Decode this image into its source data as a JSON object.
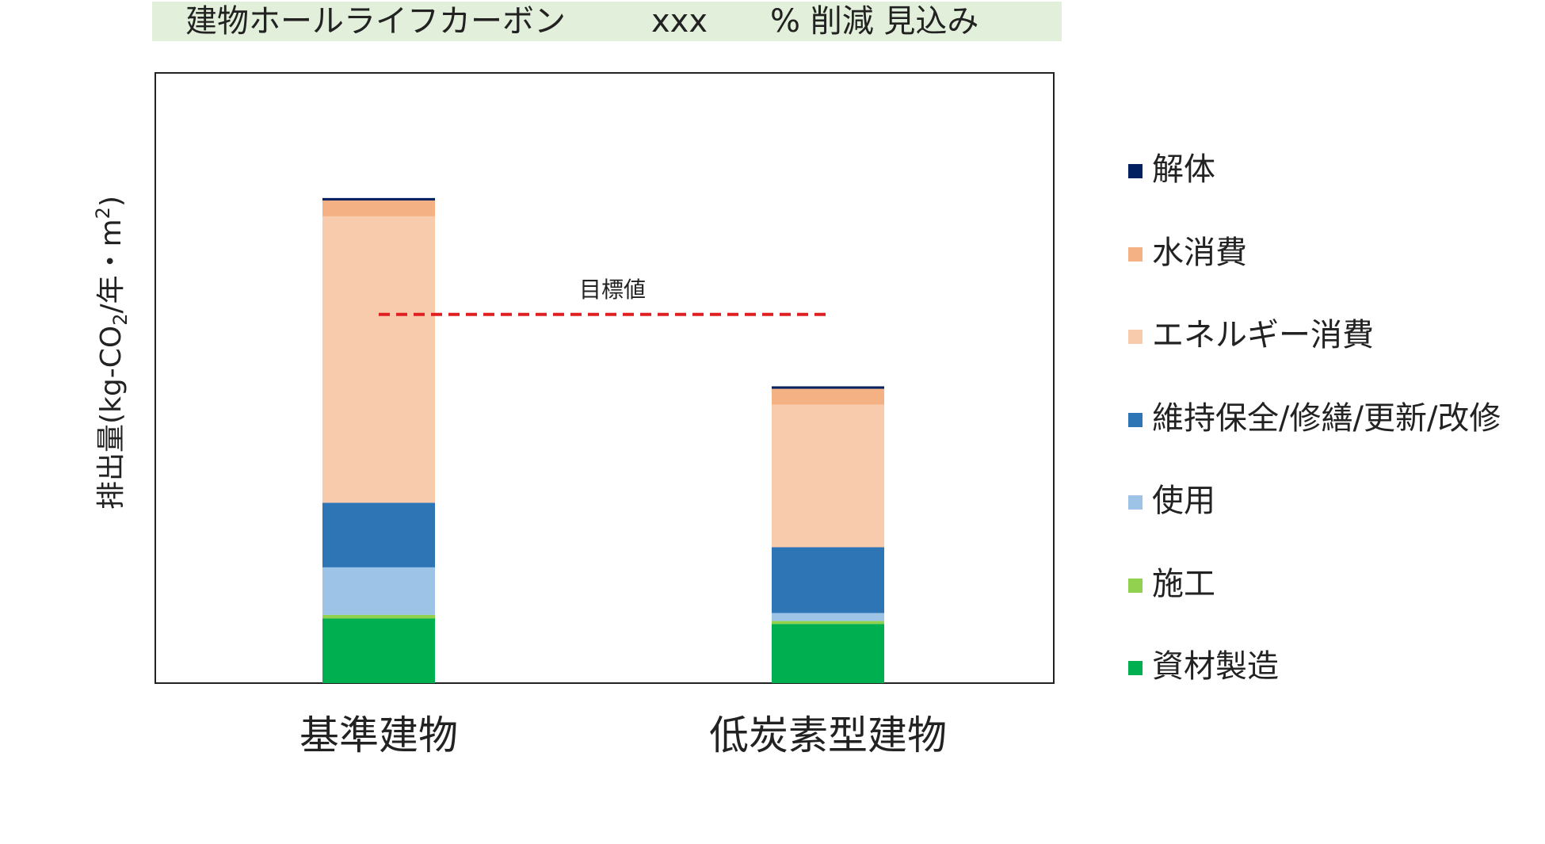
{
  "banner": {
    "main": "建物ホールライフカーボン",
    "value": "xxx",
    "suffix": "% 削減 見込み"
  },
  "chart_data": {
    "type": "bar",
    "stacked": true,
    "categories": [
      "基準建物",
      "低炭素型建物"
    ],
    "ylabel": "排出量(kg-CO2/年・m2)",
    "ylabel_main": "排出量(kg-CO",
    "ylabel_sub": "2",
    "ylabel_mid": "/年・m",
    "ylabel_sup": "2",
    "ylabel_end": ")",
    "ylim": [
      0,
      100
    ],
    "grid": false,
    "legend_position": "right",
    "series": [
      {
        "name": "資材製造",
        "color": "#00b050",
        "values": [
          10.6,
          9.7
        ]
      },
      {
        "name": "施工",
        "color": "#92d050",
        "values": [
          0.6,
          0.5
        ]
      },
      {
        "name": "使用",
        "color": "#9dc3e6",
        "values": [
          7.8,
          1.3
        ]
      },
      {
        "name": "維持保全/修繕/更新/改修",
        "color": "#2e75b6",
        "values": [
          10.6,
          10.8
        ]
      },
      {
        "name": "エネルギー消費",
        "color": "#f8cbad",
        "values": [
          47.0,
          23.4
        ]
      },
      {
        "name": "水消費",
        "color": "#f4b183",
        "values": [
          2.6,
          2.6
        ]
      },
      {
        "name": "解体",
        "color": "#002060",
        "values": [
          0.4,
          0.4
        ]
      }
    ],
    "target": {
      "label": "目標値",
      "value": 60.5,
      "color": "#e02020"
    }
  }
}
